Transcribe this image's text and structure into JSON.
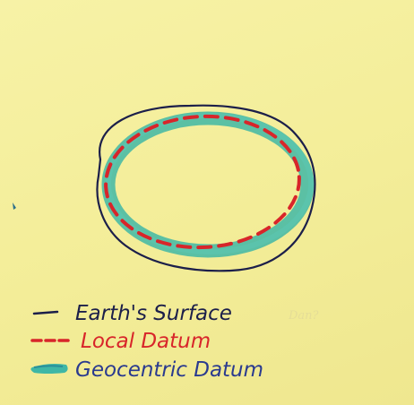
{
  "diagram": {
    "layers": [
      {
        "id": "earth-surface",
        "color": "#1c1f4a",
        "stroke_style": "solid thin"
      },
      {
        "id": "local-datum",
        "color": "#d8252a",
        "stroke_style": "dashed"
      },
      {
        "id": "geocentric-datum",
        "color": "#3fb7a6",
        "stroke_style": "thick band"
      }
    ]
  },
  "legend": {
    "items": [
      {
        "label": "Earth's Surface",
        "color": "#1c1f4a",
        "swatch": "solid-line"
      },
      {
        "label": "Local Datum",
        "color": "#d8252a",
        "swatch": "dashed-line"
      },
      {
        "label": "Geocentric Datum",
        "color": "#2a3a8f",
        "swatch_color": "#3fb7a6",
        "swatch": "thick-band"
      }
    ]
  },
  "annotation": {
    "signature": "Dan?"
  }
}
